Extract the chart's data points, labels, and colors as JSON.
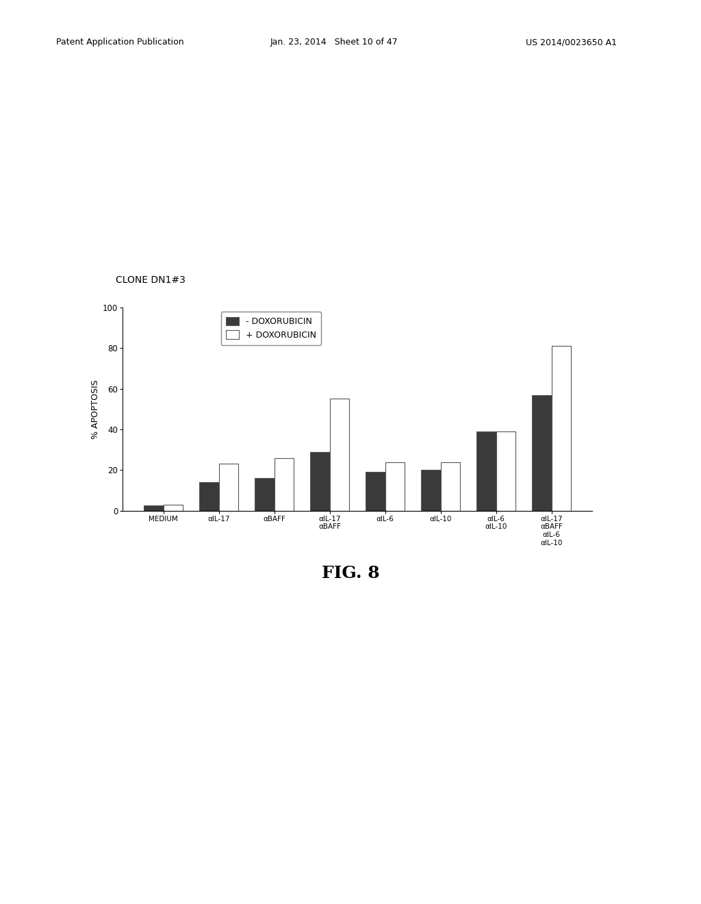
{
  "title": "CLONE DN1#3",
  "ylabel": "% APOPTOSIS",
  "fig_label": "FIG. 8",
  "ylim": [
    0,
    100
  ],
  "yticks": [
    0,
    20,
    40,
    60,
    80,
    100
  ],
  "categories": [
    "MEDIUM",
    "αIL-17",
    "αBAFF",
    "αIL-17\nαBAFF",
    "αIL-6",
    "αIL-10",
    "αIL-6\nαIL-10",
    "αIL-17\nαBAFF\nαIL-6\nαIL-10"
  ],
  "series_minus": [
    2.5,
    14,
    16,
    29,
    19,
    20,
    39,
    57
  ],
  "series_plus": [
    3,
    23,
    26,
    55,
    24,
    24,
    39,
    81
  ],
  "bar_color_minus": "#3a3a3a",
  "bar_color_plus": "#ffffff",
  "bar_edgecolor": "#555555",
  "legend_minus": "- DOXORUBICIN",
  "legend_plus": "+ DOXORUBICIN",
  "bar_width": 0.35,
  "figsize": [
    10.24,
    13.2
  ],
  "dpi": 100,
  "background_color": "#ffffff",
  "title_fontsize": 10,
  "axis_fontsize": 9,
  "tick_fontsize": 8.5,
  "legend_fontsize": 9,
  "fig_label_fontsize": 18,
  "header_fontsize": 9
}
